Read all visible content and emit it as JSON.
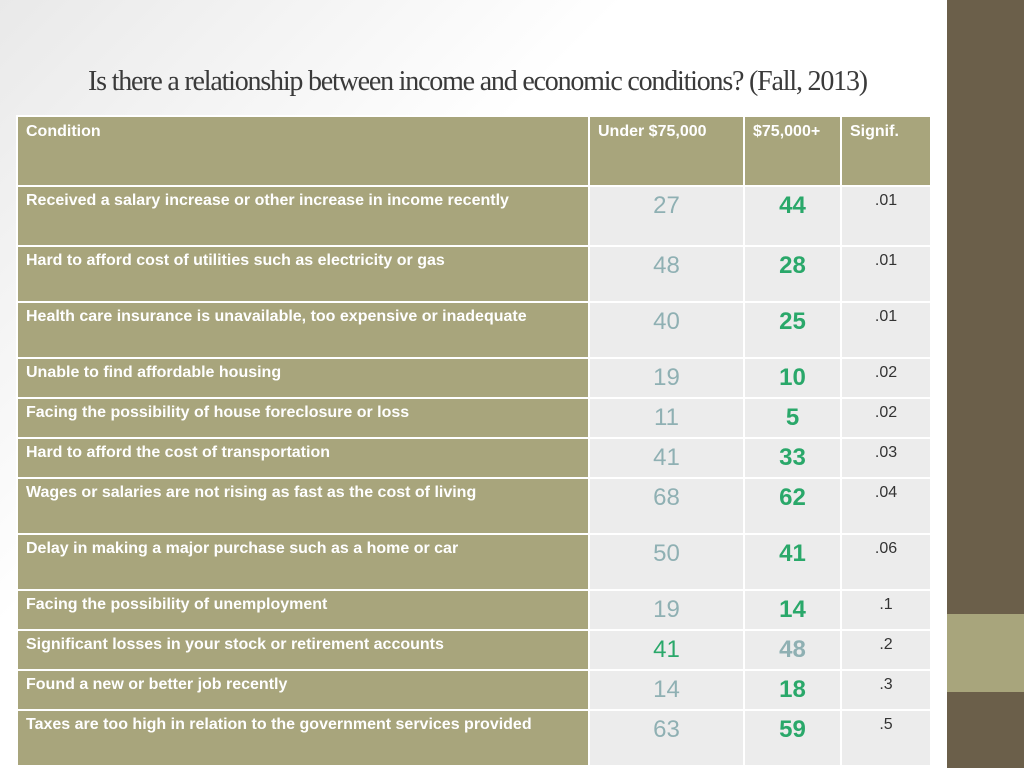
{
  "title": "Is there a relationship between income and economic conditions? (Fall, 2013)",
  "headers": {
    "condition": "Condition",
    "under": "Under $75,000",
    "over": "$75,000+",
    "signif": "Signif."
  },
  "rows": [
    {
      "condition": "Received a salary increase or other increase in income recently",
      "under": "27",
      "over": "44",
      "signif": ".01"
    },
    {
      "condition": "Hard to afford cost of utilities such as electricity or gas",
      "under": "48",
      "over": "28",
      "signif": ".01"
    },
    {
      "condition": "Health care insurance is unavailable, too expensive or inadequate",
      "under": "40",
      "over": "25",
      "signif": ".01"
    },
    {
      "condition": "Unable to find affordable housing",
      "under": "19",
      "over": "10",
      "signif": ".02"
    },
    {
      "condition": "Facing the possibility of house foreclosure or loss",
      "under": "11",
      "over": "5",
      "signif": ".02"
    },
    {
      "condition": "Hard to afford the cost of transportation",
      "under": "41",
      "over": "33",
      "signif": ".03"
    },
    {
      "condition": "Wages or salaries are not rising as fast as the cost of living",
      "under": "68",
      "over": "62",
      "signif": ".04"
    },
    {
      "condition": "Delay in making a major purchase such as a home or car",
      "under": "50",
      "over": "41",
      "signif": ".06"
    },
    {
      "condition": "Facing the possibility of unemployment",
      "under": "19",
      "over": "14",
      "signif": ".1"
    },
    {
      "condition": "Significant losses in your stock or retirement accounts",
      "under": "41",
      "over": "48",
      "signif": ".2"
    },
    {
      "condition": "Found a new or better job recently",
      "under": "14",
      "over": "18",
      "signif": ".3"
    },
    {
      "condition": "Taxes are too high in relation to the government services provided",
      "under": "63",
      "over": "59",
      "signif": ".5"
    }
  ],
  "colors": {
    "header_bg": "#a8a57c",
    "cell_bg": "#ececec",
    "higher_value": "#2aa86a",
    "lower_value": "#8fb0b3",
    "side_bar": "#6b5f4a"
  }
}
